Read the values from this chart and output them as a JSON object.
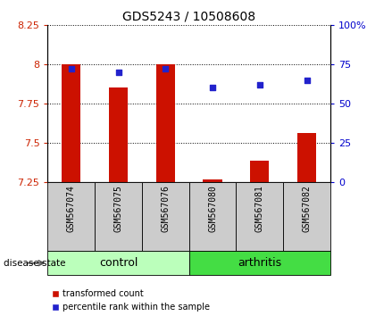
{
  "title": "GDS5243 / 10508608",
  "samples": [
    "GSM567074",
    "GSM567075",
    "GSM567076",
    "GSM567080",
    "GSM567081",
    "GSM567082"
  ],
  "bar_values": [
    8.0,
    7.855,
    8.0,
    7.265,
    7.385,
    7.56
  ],
  "percentile_values": [
    72,
    70,
    72,
    60,
    62,
    65
  ],
  "bar_baseline": 7.25,
  "ylim_left": [
    7.25,
    8.25
  ],
  "ylim_right": [
    0,
    100
  ],
  "yticks_left": [
    7.25,
    7.5,
    7.75,
    8.0,
    8.25
  ],
  "ytick_labels_left": [
    "7.25",
    "7.5",
    "7.75",
    "8",
    "8.25"
  ],
  "yticks_right": [
    0,
    25,
    50,
    75,
    100
  ],
  "ytick_labels_right": [
    "0",
    "25",
    "50",
    "75",
    "100%"
  ],
  "bar_color": "#cc1100",
  "scatter_color": "#2222cc",
  "groups": [
    {
      "label": "control",
      "indices": [
        0,
        1,
        2
      ],
      "color": "#bbffbb"
    },
    {
      "label": "arthritis",
      "indices": [
        3,
        4,
        5
      ],
      "color": "#44dd44"
    }
  ],
  "group_label_text": "disease state",
  "legend_items": [
    {
      "label": "transformed count",
      "color": "#cc1100"
    },
    {
      "label": "percentile rank within the sample",
      "color": "#2222cc"
    }
  ],
  "tick_cell_color": "#cccccc",
  "tick_label_color_left": "#cc2200",
  "tick_label_color_right": "#0000cc",
  "figsize": [
    4.11,
    3.54
  ],
  "dpi": 100
}
